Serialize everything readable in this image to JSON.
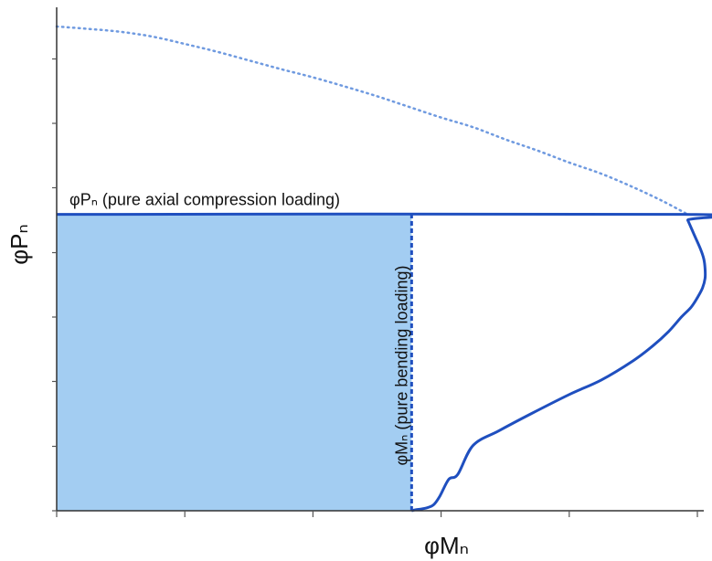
{
  "chart_data": {
    "type": "line",
    "xlabel": "φMₙ",
    "ylabel": "φPₙ",
    "xlim": [
      0,
      1.0
    ],
    "ylim": [
      0,
      1.0
    ],
    "x_ticks": [
      0,
      0.2,
      0.4,
      0.6,
      0.8,
      1.0
    ],
    "y_ticks": [
      0,
      0.133,
      0.267,
      0.4,
      0.533,
      0.667,
      0.8,
      0.933
    ],
    "grid": false,
    "colors": {
      "fill": "#a3cdf2",
      "curve": "#1f4fbf",
      "dotted_curve": "#6f9ae0",
      "axis": "#333333"
    },
    "design_region": {
      "x": [
        0,
        0.554
      ],
      "y": [
        0,
        0.612
      ]
    },
    "series": [
      {
        "style": "dotted",
        "x": [
          0,
          0.05,
          0.1,
          0.15,
          0.2,
          0.25,
          0.3,
          0.35,
          0.4,
          0.45,
          0.5,
          0.55,
          0.6,
          0.65,
          0.7,
          0.75,
          0.8,
          0.85,
          0.9,
          0.945,
          0.985
        ],
        "y": [
          1.0,
          0.995,
          0.989,
          0.979,
          0.964,
          0.948,
          0.93,
          0.912,
          0.895,
          0.876,
          0.856,
          0.834,
          0.812,
          0.792,
          0.767,
          0.744,
          0.719,
          0.696,
          0.668,
          0.64,
          0.612
        ]
      },
      {
        "style": "solid",
        "x": [
          0,
          0.98,
          0.985,
          0.995,
          1.005,
          1.01,
          1.012,
          1.012,
          1.008,
          1.0,
          0.99,
          0.975,
          0.955,
          0.93,
          0.9,
          0.85,
          0.8,
          0.74,
          0.69,
          0.65,
          0.626,
          0.612,
          0.598,
          0.588,
          0.575,
          0.56,
          0.554
        ],
        "y": [
          0.612,
          0.612,
          0.6,
          0.57,
          0.54,
          0.52,
          0.5,
          0.48,
          0.46,
          0.44,
          0.42,
          0.4,
          0.37,
          0.34,
          0.31,
          0.27,
          0.24,
          0.2,
          0.165,
          0.135,
          0.075,
          0.065,
          0.03,
          0.012,
          0.005,
          0.002,
          0
        ]
      },
      {
        "style": "dashed",
        "x": [
          0.554,
          0.554
        ],
        "y": [
          0,
          0.612
        ]
      }
    ],
    "annotations": [
      {
        "text": "φPₙ (pure axial compression loading)",
        "x": 0.02,
        "y": 0.612
      },
      {
        "text": "φMₙ (pure bending loading)",
        "x": 0.54,
        "y": 0.3
      }
    ]
  }
}
